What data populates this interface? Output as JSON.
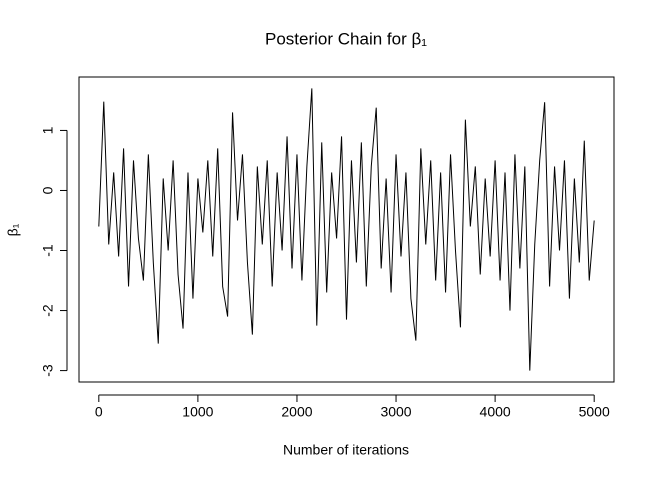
{
  "chart_data": {
    "type": "line",
    "title": "Posterior Chain for β₁",
    "x_label": "Number of iterations",
    "y_label": "β₁",
    "color": "#000000",
    "x": [
      0,
      50,
      100,
      150,
      200,
      250,
      300,
      350,
      400,
      450,
      500,
      550,
      600,
      650,
      700,
      750,
      800,
      850,
      900,
      950,
      1000,
      1050,
      1100,
      1150,
      1200,
      1250,
      1300,
      1350,
      1400,
      1450,
      1500,
      1550,
      1600,
      1650,
      1700,
      1750,
      1800,
      1850,
      1900,
      1950,
      2000,
      2050,
      2100,
      2150,
      2200,
      2250,
      2300,
      2350,
      2400,
      2450,
      2500,
      2550,
      2600,
      2650,
      2700,
      2750,
      2800,
      2850,
      2900,
      2950,
      3000,
      3050,
      3100,
      3150,
      3200,
      3250,
      3300,
      3350,
      3400,
      3450,
      3500,
      3550,
      3600,
      3650,
      3700,
      3750,
      3800,
      3850,
      3900,
      3950,
      4000,
      4050,
      4100,
      4150,
      4200,
      4250,
      4300,
      4350,
      4400,
      4450,
      4500,
      4550,
      4600,
      4650,
      4700,
      4750,
      4800,
      4850,
      4900,
      4950,
      5000
    ],
    "values": [
      -0.6,
      1.48,
      -0.9,
      0.3,
      -1.1,
      0.7,
      -1.6,
      0.5,
      -0.8,
      -1.5,
      0.6,
      -1.2,
      -2.55,
      0.2,
      -1.0,
      0.5,
      -1.4,
      -2.3,
      0.3,
      -1.8,
      0.2,
      -0.7,
      0.5,
      -1.1,
      0.7,
      -1.6,
      -2.1,
      1.3,
      -0.5,
      0.6,
      -1.2,
      -2.4,
      0.4,
      -0.9,
      0.5,
      -1.6,
      0.3,
      -1.0,
      0.9,
      -1.3,
      0.6,
      -1.5,
      0.4,
      1.7,
      -2.25,
      0.8,
      -1.7,
      0.3,
      -0.8,
      0.9,
      -2.15,
      0.5,
      -1.2,
      0.8,
      -1.6,
      0.4,
      1.38,
      -1.3,
      0.2,
      -1.7,
      0.6,
      -1.1,
      0.3,
      -1.8,
      -2.5,
      0.7,
      -0.9,
      0.5,
      -1.5,
      0.3,
      -1.7,
      0.6,
      -1.0,
      -2.28,
      1.18,
      -0.6,
      0.4,
      -1.4,
      0.2,
      -1.1,
      0.5,
      -1.5,
      0.3,
      -2.0,
      0.6,
      -1.3,
      0.4,
      -3.0,
      -0.9,
      0.5,
      1.47,
      -1.6,
      0.4,
      -1.0,
      0.5,
      -1.8,
      0.2,
      -1.2,
      0.83,
      -1.5,
      -0.5
    ],
    "xlim": [
      -200,
      5200
    ],
    "ylim": [
      -3.19,
      1.89
    ],
    "xticks": [
      0,
      1000,
      2000,
      3000,
      4000,
      5000
    ],
    "yticks": [
      -3,
      -2,
      -1,
      0,
      1
    ]
  }
}
